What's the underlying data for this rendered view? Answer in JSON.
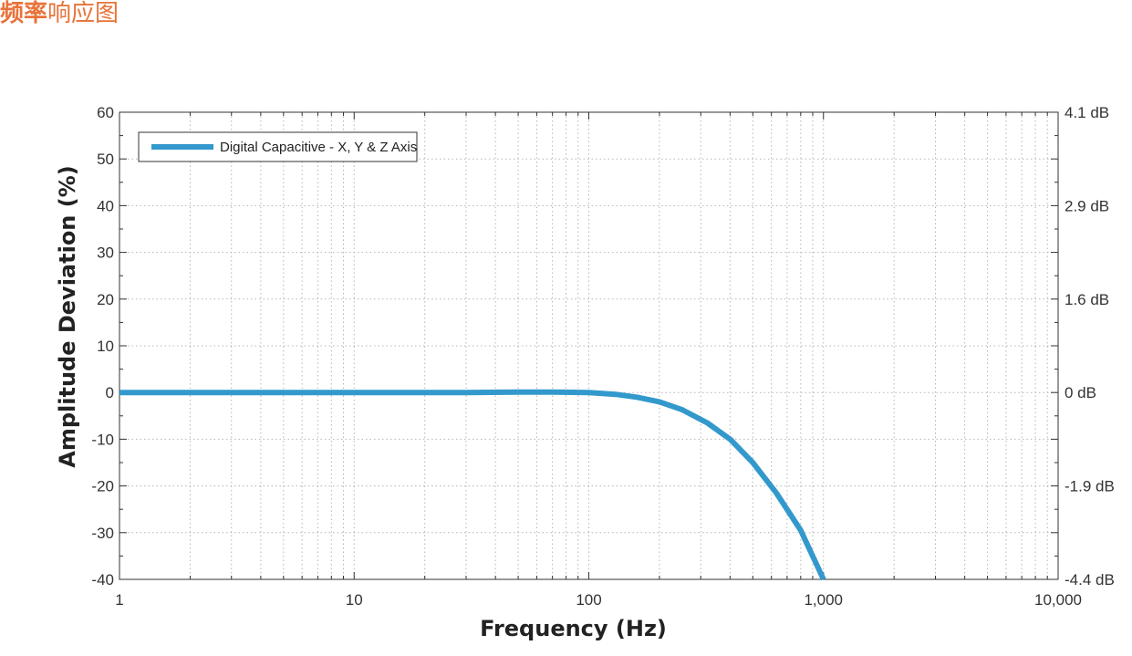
{
  "page": {
    "title_strong": "频率",
    "title_rest": "响应图"
  },
  "colors": {
    "title": "#e8733a",
    "series": "#3399cc",
    "grid": "#b5b5b5"
  },
  "chart_data": {
    "type": "line",
    "title": "",
    "xlabel": "Frequency (Hz)",
    "ylabel": "Amplitude Deviation (%)",
    "x_scale": "log",
    "xlim": [
      1,
      10000
    ],
    "ylim": [
      -40,
      60
    ],
    "x_ticks": [
      1,
      10,
      100,
      1000,
      10000
    ],
    "x_tick_labels": [
      "1",
      "10",
      "100",
      "1,000",
      "10,000"
    ],
    "y_ticks": [
      -40,
      -30,
      -20,
      -10,
      0,
      10,
      20,
      30,
      40,
      50,
      60
    ],
    "y_tick_labels": [
      "-40",
      "-30",
      "-20",
      "-10",
      "0",
      "10",
      "20",
      "30",
      "40",
      "50",
      "60"
    ],
    "y2_ticks": [
      60,
      40,
      20,
      0,
      -20,
      -40
    ],
    "y2_tick_labels": [
      "4.1 dB",
      "2.9 dB",
      "1.6 dB",
      "0 dB",
      "-1.9 dB",
      "-4.4 dB"
    ],
    "grid": true,
    "legend_position": "top-left",
    "series": [
      {
        "name": "Digital Capacitive - X, Y & Z Axis",
        "x": [
          1,
          2,
          5,
          10,
          20,
          30,
          50,
          70,
          100,
          130,
          160,
          200,
          250,
          320,
          400,
          500,
          630,
          800,
          1000
        ],
        "y": [
          0,
          0,
          0,
          0,
          0,
          0,
          0.1,
          0.1,
          0,
          -0.4,
          -1,
          -2,
          -3.7,
          -6.5,
          -10,
          -15,
          -21.5,
          -29.5,
          -40
        ]
      }
    ]
  }
}
